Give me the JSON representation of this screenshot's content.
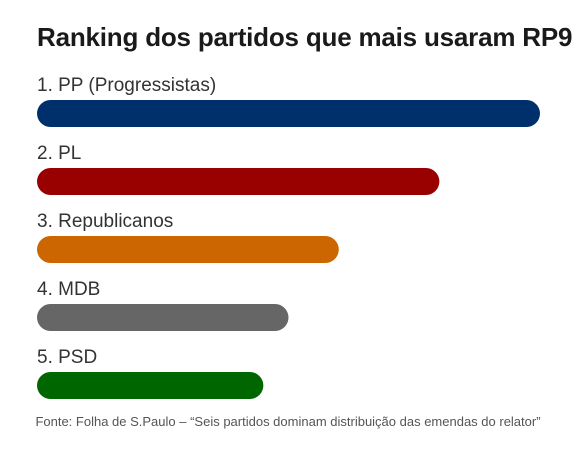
{
  "header": {
    "title": "Ranking dos partidos que mais usaram RP9"
  },
  "chart_data": {
    "type": "bar",
    "orientation": "horizontal",
    "title": "Ranking dos partidos que mais usaram RP9",
    "xlabel": "",
    "ylabel": "",
    "axis_ticks": false,
    "grid": false,
    "categories": [
      "1. PP (Progressistas)",
      "2. PL",
      "3. Republicanos",
      "4. MDB",
      "5. PSD"
    ],
    "values": [
      100,
      80,
      60,
      50,
      45
    ],
    "xlim": [
      0,
      100
    ],
    "colors": [
      "#00306b",
      "#990000",
      "#cc6600",
      "#666666",
      "#006600"
    ]
  },
  "footer": {
    "source": "Fonte: Folha de S.Paulo – “Seis partidos dominam distribuição das emendas do relator”"
  }
}
